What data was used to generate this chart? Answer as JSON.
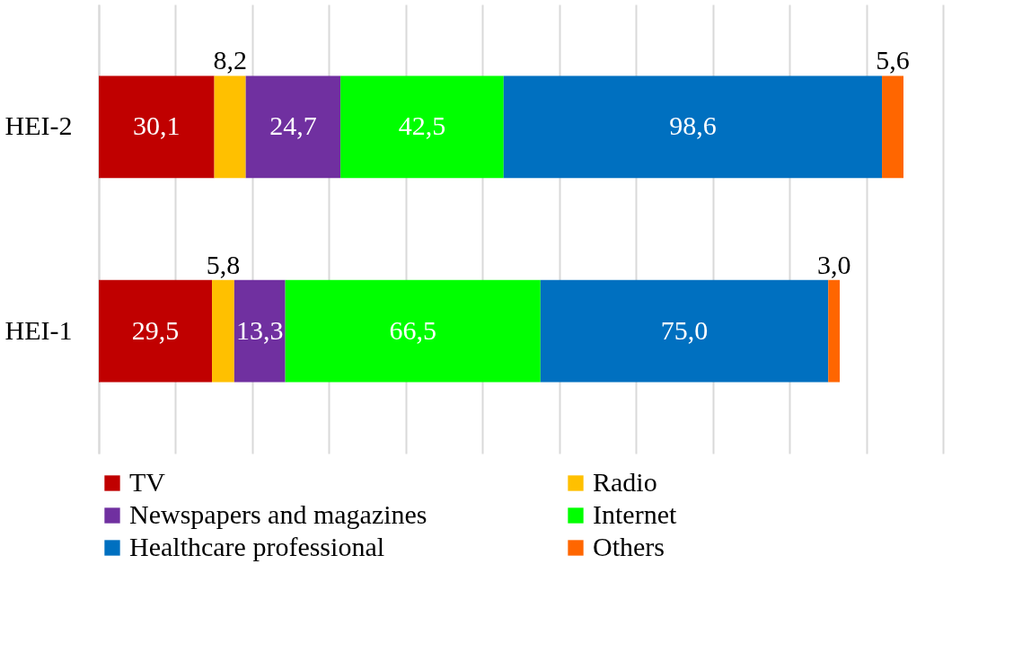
{
  "chart_data": {
    "type": "bar",
    "orientation": "horizontal",
    "stacked": true,
    "categories": [
      "HEI-2",
      "HEI-1"
    ],
    "series": [
      {
        "name": "TV",
        "color": "#c00000",
        "values": [
          30.1,
          29.5
        ],
        "value_labels": [
          "30,1",
          "29,5"
        ]
      },
      {
        "name": "Radio",
        "color": "#ffc000",
        "values": [
          8.2,
          5.8
        ],
        "value_labels": [
          "8,2",
          "5,8"
        ]
      },
      {
        "name": "Newspapers and magazines",
        "color": "#7030a0",
        "values": [
          24.7,
          13.3
        ],
        "value_labels": [
          "24,7",
          "13,3"
        ]
      },
      {
        "name": "Internet",
        "color": "#00ff00",
        "values": [
          42.5,
          66.5
        ],
        "value_labels": [
          "42,5",
          "66,5"
        ]
      },
      {
        "name": "Healthcare professional",
        "color": "#0070c0",
        "values": [
          98.6,
          75.0
        ],
        "value_labels": [
          "98,6",
          "75,0"
        ]
      },
      {
        "name": "Others",
        "color": "#ff6600",
        "values": [
          5.6,
          3.0
        ],
        "value_labels": [
          "5,6",
          "3,0"
        ]
      }
    ],
    "xlim": [
      0,
      220
    ],
    "xticks": [
      {
        "value": 0,
        "label": null
      },
      {
        "value": 20,
        "label": null
      },
      {
        "value": 40,
        "label": null
      },
      {
        "value": 60,
        "label": null
      },
      {
        "value": 80,
        "label": null
      },
      {
        "value": 100,
        "label": null
      },
      {
        "value": 120,
        "label": null
      },
      {
        "value": 140,
        "label": null
      },
      {
        "value": 160,
        "label": null
      },
      {
        "value": 180,
        "label": null
      },
      {
        "value": 200,
        "label": null
      },
      {
        "value": 220,
        "label": null
      }
    ],
    "grid": "x",
    "legend": "bottom",
    "tick_labels": "y"
  }
}
